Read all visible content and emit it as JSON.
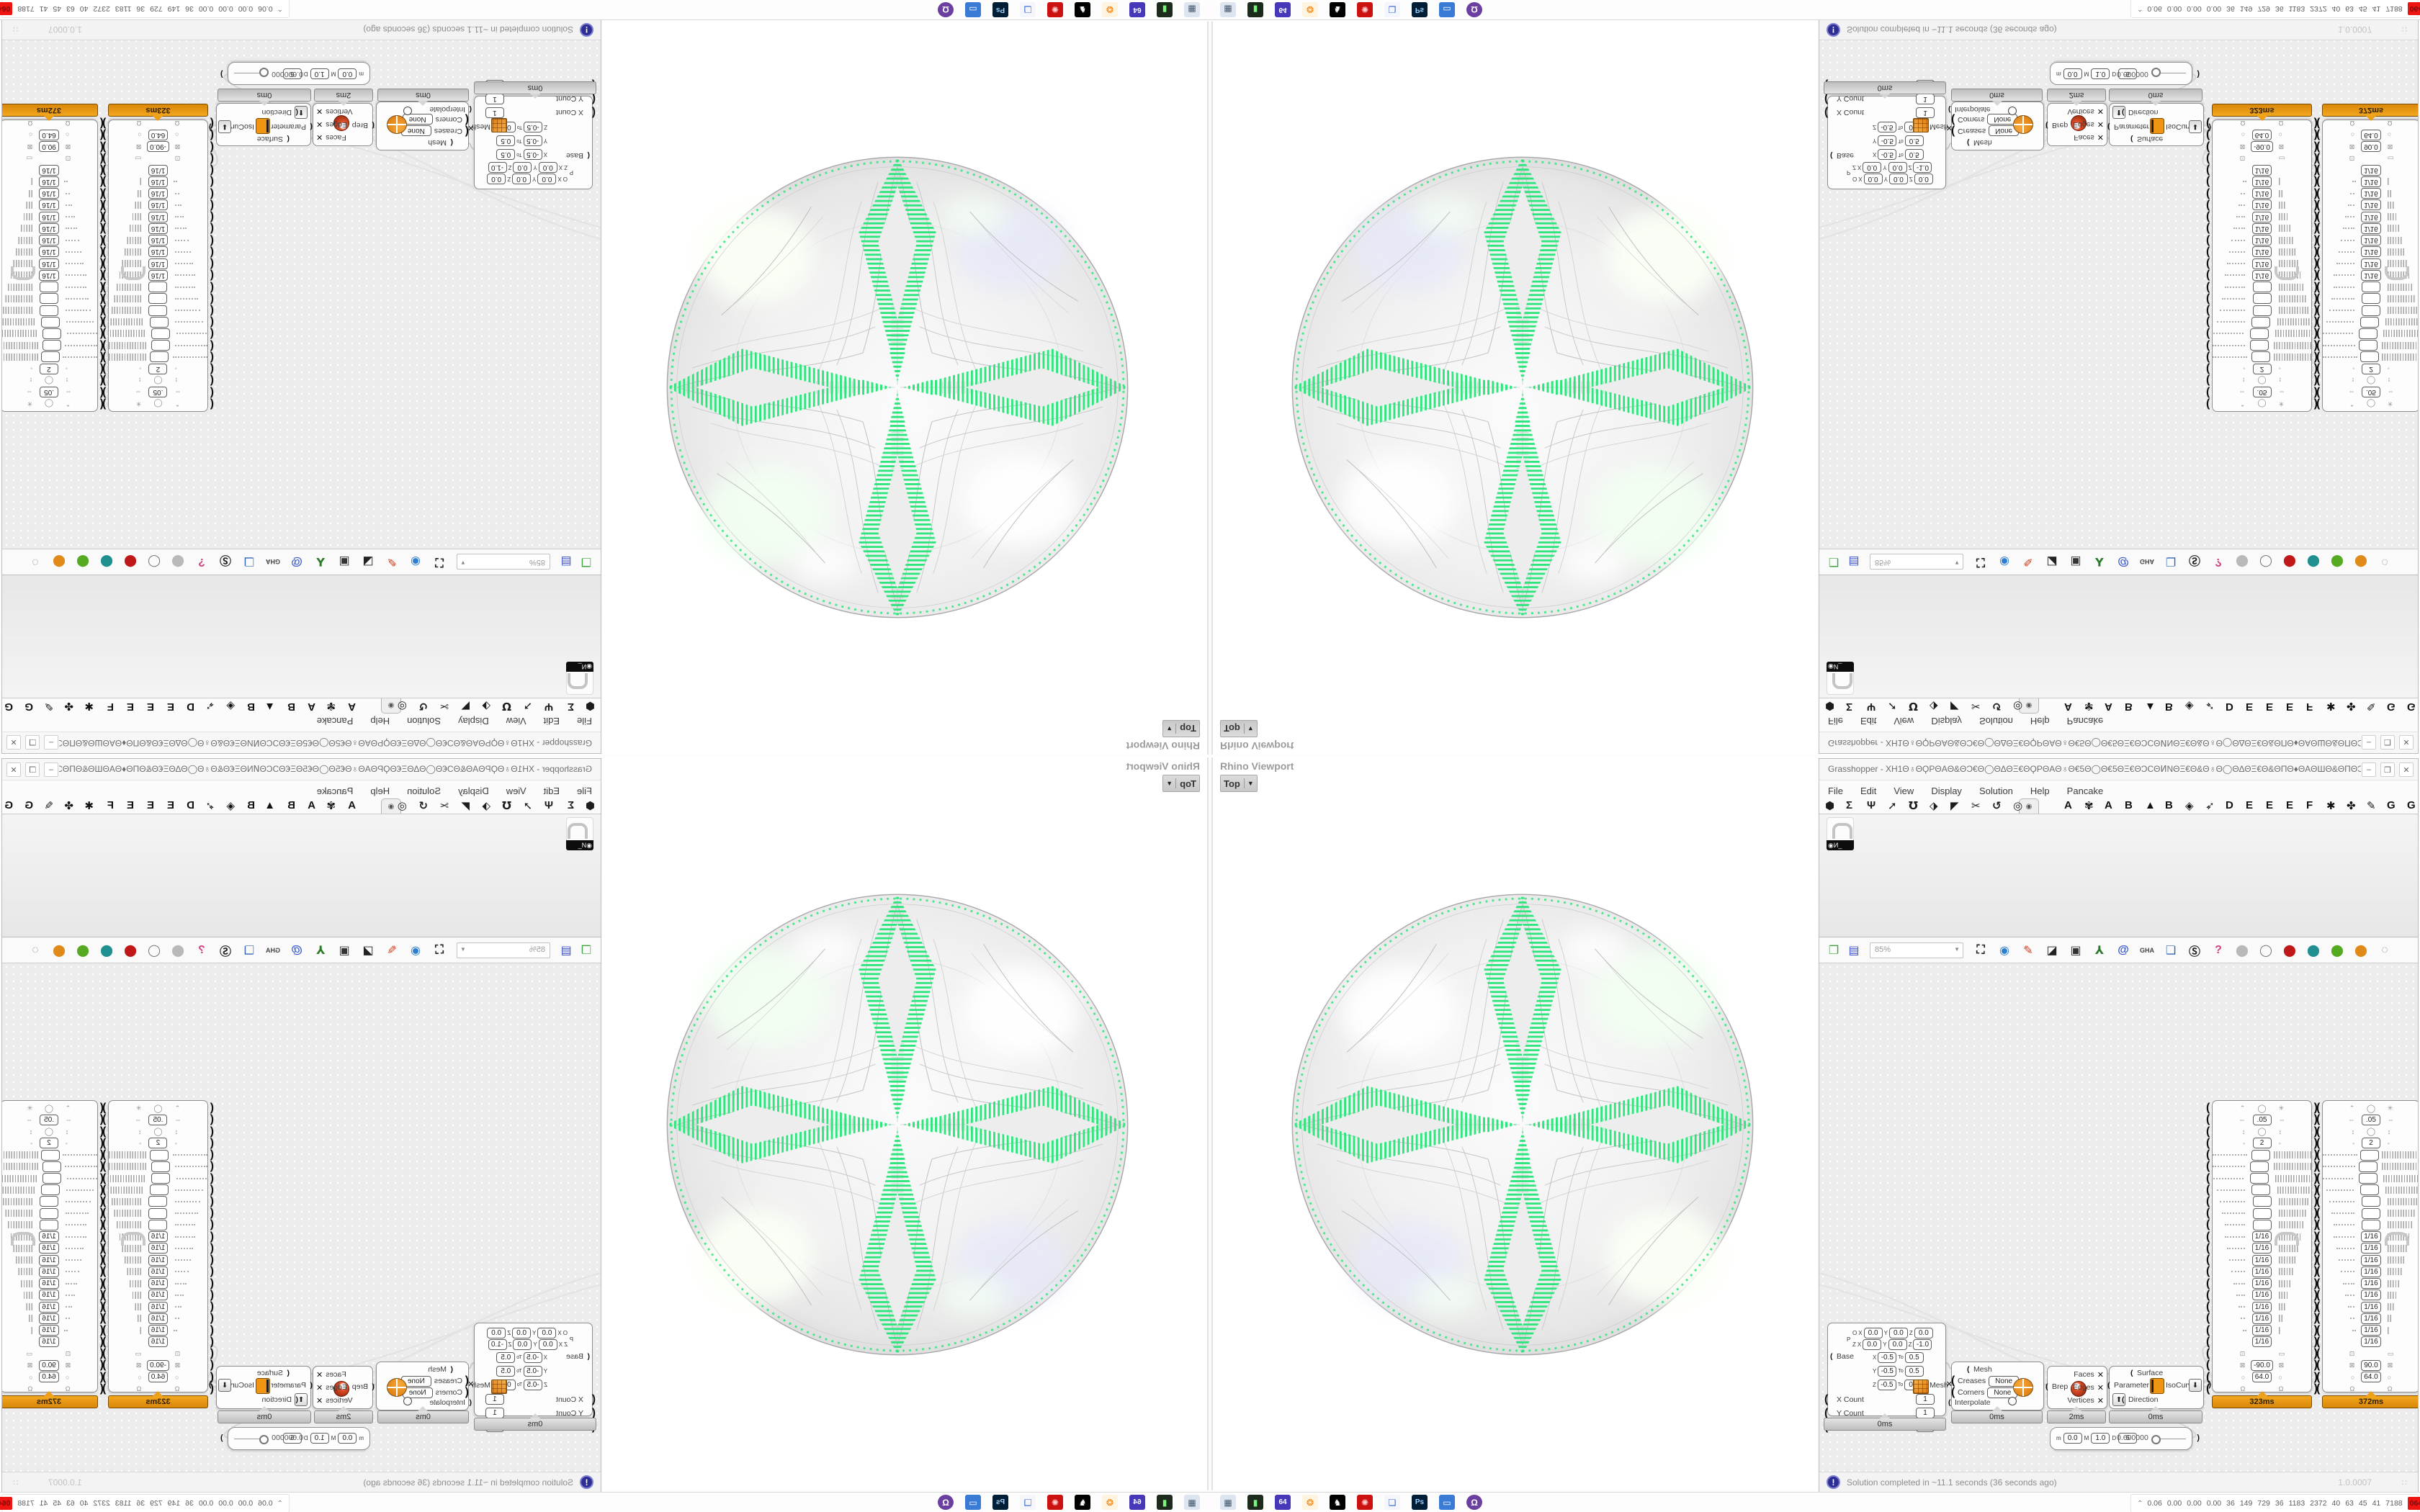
{
  "colors": {
    "green_accent": "#2fe57d",
    "profiler_orange": "#e8930c",
    "badge_red": "#ee1512",
    "canvas_gray": "#ececec"
  },
  "viewport": {
    "panel_label": "Rhino Viewport",
    "view_button": "Top",
    "dropdown_glyph": "▼"
  },
  "window": {
    "title": "Grasshopper - XH1Θ♁ΘϘPΘAΘ&ΘƆ€Θ◯ΘΔΘΞ€ΘϘPΘAΘ♁Θ€5Θ◯Θ€5ΘΞ€ΘƆCΘͶNΘΞ€Θ&Θ♁Θ◯ΘΔΘΞ€Θ&ΘΠΘ♦ΘAΘШΘ&ΘΠΘƆCΘΘΘƆ_",
    "minimize": "–",
    "maximize": "❒",
    "close": "✕"
  },
  "menu": [
    "File",
    "Edit",
    "View",
    "Display",
    "Solution",
    "Help",
    "Pancake"
  ],
  "tabs": {
    "category_icons": [
      {
        "name": "tab-params-icon",
        "glyph": "⬢"
      },
      {
        "name": "tab-maths-icon",
        "glyph": "Σ"
      },
      {
        "name": "tab-sets-icon",
        "glyph": "Ψ"
      },
      {
        "name": "tab-vector-icon",
        "glyph": "➚"
      },
      {
        "name": "tab-curve-icon",
        "glyph": "℧"
      },
      {
        "name": "tab-surface-icon",
        "glyph": "⬗"
      },
      {
        "name": "tab-mesh-icon",
        "glyph": "◤"
      },
      {
        "name": "tab-intersect-icon",
        "glyph": "✂"
      },
      {
        "name": "tab-transform-icon",
        "glyph": "↺"
      },
      {
        "name": "tab-display-icon",
        "glyph": "◎"
      }
    ],
    "selected_tab_glyph": "◉",
    "plugin_tabs": [
      {
        "name": "tab-plugin-a1",
        "glyph": "A"
      },
      {
        "name": "tab-plugin-brain-icon",
        "glyph": "✾"
      },
      {
        "name": "tab-plugin-a2",
        "glyph": "A"
      },
      {
        "name": "tab-plugin-b1",
        "glyph": "B"
      },
      {
        "name": "tab-plugin-mountain-icon",
        "glyph": "▲"
      },
      {
        "name": "tab-plugin-b2",
        "glyph": "B"
      },
      {
        "name": "tab-plugin-shield-icon",
        "glyph": "◈"
      },
      {
        "name": "tab-plugin-bird-icon",
        "glyph": "➶"
      },
      {
        "name": "tab-plugin-d",
        "glyph": "D"
      },
      {
        "name": "tab-plugin-e1",
        "glyph": "E"
      },
      {
        "name": "tab-plugin-e2",
        "glyph": "E"
      },
      {
        "name": "tab-plugin-e3",
        "glyph": "E"
      },
      {
        "name": "tab-plugin-f",
        "glyph": "F"
      },
      {
        "name": "tab-plugin-fly-icon",
        "glyph": "✱"
      },
      {
        "name": "tab-plugin-bug-icon",
        "glyph": "✤"
      },
      {
        "name": "tab-plugin-pen-icon",
        "glyph": "✎"
      },
      {
        "name": "tab-plugin-g1",
        "glyph": "G"
      },
      {
        "name": "tab-plugin-g2",
        "glyph": "G"
      }
    ]
  },
  "ribbon": {
    "tool_label": "◉И_"
  },
  "canvas_toolbar": {
    "zoom_value": "85%",
    "open_icon": {
      "name": "open-file-icon",
      "glyph": "❐",
      "color": "#3fa33f"
    },
    "save_icon": {
      "name": "save-file-icon",
      "glyph": "▤",
      "color": "#3a50c8"
    },
    "icons": [
      {
        "name": "zoom-extents-icon",
        "glyph": "⛶",
        "color": "#1a1a1a"
      },
      {
        "name": "preview-eye-icon",
        "glyph": "◉",
        "color": "#2d7dd2"
      },
      {
        "name": "sketch-brush-icon",
        "glyph": "✎",
        "color": "#d23c1a"
      },
      {
        "name": "camera-icon",
        "glyph": "◪",
        "color": "#222222"
      },
      {
        "name": "exposure-box-icon",
        "glyph": "▣",
        "color": "#333333"
      },
      {
        "name": "axes-icon",
        "glyph": "⅄",
        "color": "#2a7a2a"
      },
      {
        "name": "remote-viewer-icon",
        "glyph": "@",
        "color": "#3355cc"
      },
      {
        "name": "gha-recycle-icon",
        "glyph": "GHA",
        "color": "#444444"
      },
      {
        "name": "publish-window-icon",
        "glyph": "❏",
        "color": "#3366bb"
      },
      {
        "name": "find-icon",
        "glyph": "Ⓢ",
        "color": "#222222"
      },
      {
        "name": "package-icon",
        "glyph": "?",
        "color": "#d2447f"
      },
      {
        "name": "preview-off-icon",
        "glyph": "⬤",
        "color": "#b9b9b9"
      },
      {
        "name": "preview-wire-icon",
        "glyph": "◯",
        "color": "#777777"
      },
      {
        "name": "preview-shaded-icon",
        "glyph": "⬤",
        "color": "#c01818"
      },
      {
        "name": "mouse-teal-icon",
        "glyph": "⬤",
        "color": "#1f8f8f"
      },
      {
        "name": "mouse-green-icon",
        "glyph": "⬤",
        "color": "#55aa22"
      },
      {
        "name": "mouse-orange-icon",
        "glyph": "⬤",
        "color": "#e08a1a"
      },
      {
        "name": "selection-ellipse-icon",
        "glyph": "◌",
        "color": "#888888"
      }
    ]
  },
  "status_bar": {
    "text": "Solution completed in ~11.1 seconds (36 seconds ago)",
    "icon_glyph": "!",
    "version": "1.0.0007"
  },
  "taskbar": {
    "icons": [
      {
        "name": "vm-monitor-icon",
        "glyph": "▦",
        "fg": "#44566b",
        "bg": "#dde6f0"
      },
      {
        "name": "green-machine-icon",
        "glyph": "▮",
        "fg": "#7cf57c",
        "bg": "#1d2b1d"
      },
      {
        "name": "floppy-64-icon",
        "glyph": "64",
        "fg": "#ffffff",
        "bg": "#4638b8"
      },
      {
        "name": "firefox-icon",
        "glyph": "❂",
        "fg": "#f57c00",
        "bg": "#fff4e0"
      },
      {
        "name": "wolf-icon",
        "glyph": "♞",
        "fg": "#ffffff",
        "bg": "#000000"
      },
      {
        "name": "red-emblem-icon",
        "glyph": "✺",
        "fg": "#ffd0d0",
        "bg": "#cc1111"
      },
      {
        "name": "window-frame-icon",
        "glyph": "❏",
        "fg": "#3366cc",
        "bg": "#f4f6fb"
      },
      {
        "name": "photoshop-icon",
        "glyph": "Ps",
        "fg": "#9fd2ff",
        "bg": "#001e36"
      },
      {
        "name": "screen-share-icon",
        "glyph": "▭",
        "fg": "#ffffff",
        "bg": "#3a7bd5"
      },
      {
        "name": "gitkraken-icon",
        "glyph": "Ω",
        "fg": "#ffffff",
        "bg": "#6a3fa0"
      }
    ],
    "tray": {
      "chevron": "⌃",
      "values": [
        "0.06",
        "0.00",
        "0.00",
        "0.00",
        "36",
        "149",
        "729",
        "36",
        "1183",
        "2372",
        "40",
        "63",
        "45",
        "41",
        "7188"
      ],
      "badge": "064",
      "marks": [
        {
          "name": "yellow-line",
          "color": "#f2e23a",
          "w": 52,
          "h": 3
        },
        {
          "name": "green-line",
          "color": "#58c43e",
          "w": 24,
          "h": 3
        },
        {
          "name": "red-dot",
          "color": "#d03020",
          "w": 4,
          "h": 4
        },
        {
          "name": "yellow-line-2",
          "color": "#f2e23a",
          "w": 30,
          "h": 3
        },
        {
          "name": "brown-block",
          "color": "#8a5a14",
          "w": 22,
          "h": 13
        },
        {
          "name": "darkred-block",
          "color": "#8f1a10",
          "w": 26,
          "h": 13
        }
      ]
    }
  },
  "nodes": {
    "box": {
      "p_label": "P",
      "point_rows": [
        {
          "label": "O",
          "x": "0.0",
          "y": "0.0",
          "z": "0.0"
        },
        {
          "label": "Z",
          "x": "0.0",
          "y": "0.0",
          "z": "-1.0"
        }
      ],
      "base_label": "Base",
      "to_label": "To",
      "domains": [
        {
          "axis": "X",
          "from": "-0.5",
          "to": "0.5"
        },
        {
          "axis": "Y",
          "from": "-0.5",
          "to": "0.5"
        },
        {
          "axis": "Z",
          "from": "-0.5",
          "to": "0.5"
        }
      ],
      "output": "Mesh",
      "counts": [
        {
          "label": "X Count",
          "value": "1"
        },
        {
          "label": "Y Count",
          "value": "1"
        },
        {
          "label": "Z Count",
          "value": "1"
        }
      ],
      "time": "0ms"
    },
    "subd": {
      "header": "Mesh",
      "fields": [
        {
          "label": "Creases",
          "value": "None"
        },
        {
          "label": "Corners",
          "value": "None"
        }
      ],
      "toggle_label": "Interpolate",
      "output": "SubD",
      "time": "0ms"
    },
    "brep": {
      "input": "Brep",
      "outputs": [
        "Faces",
        "Edges",
        "Vertices"
      ],
      "time": "2ms"
    },
    "isocurve": {
      "input_surface": "Surface",
      "input_parameter": "Parameter",
      "input_direction": "Direction",
      "label": "IsoCurve",
      "time": "0ms"
    },
    "slider": {
      "m_label": "m",
      "m": "0.0",
      "M_label": "M",
      "M": "1.0",
      "d_label": "D",
      "d": "6",
      "value": "0.600000"
    },
    "cluster_common": {
      "top_value": ".05",
      "count_value": "2",
      "fraction": "1/16",
      "empty_rows": 7,
      "fraction_rows": 10,
      "radius": "64.0",
      "omega": "Ω"
    },
    "clusters": [
      {
        "time": "323ms",
        "angle": "-90.0"
      },
      {
        "time": "372ms",
        "angle": "90.0"
      }
    ]
  }
}
